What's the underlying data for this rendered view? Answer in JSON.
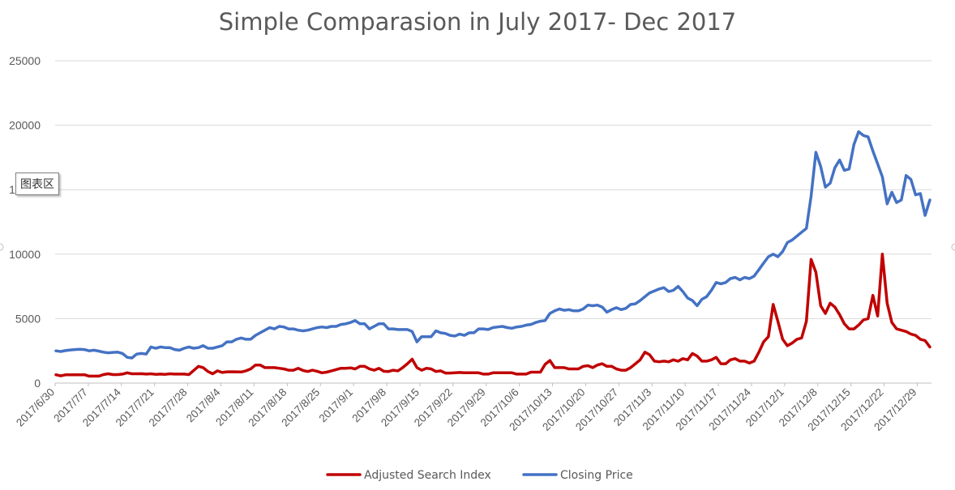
{
  "chart_data": {
    "type": "line",
    "title": "Simple Comparasion in July 2017- Dec 2017",
    "ylim": [
      0,
      25000
    ],
    "yticks": [
      "0",
      "5000",
      "10000",
      "15000",
      "20000",
      "25000"
    ],
    "xticks": [
      "2017/6/30",
      "2017/7/7",
      "2017/7/14",
      "2017/7/21",
      "2017/7/28",
      "2017/8/4",
      "2017/8/11",
      "2017/8/18",
      "2017/8/25",
      "2017/9/1",
      "2017/9/8",
      "2017/9/15",
      "2017/9/22",
      "2017/9/29",
      "2017/10/6",
      "2017/10/13",
      "2017/10/20",
      "2017/10/27",
      "2017/11/3",
      "2017/11/10",
      "2017/11/17",
      "2017/11/24",
      "2017/12/1",
      "2017/12/8",
      "2017/12/15",
      "2017/12/22",
      "2017/12/29"
    ],
    "x_start": "2017/6/30",
    "x_end": "2018/1/1",
    "grid": true,
    "legend_position": "bottom",
    "series": [
      {
        "name": "Adjusted Search Index",
        "color": "#C00000",
        "values": [
          650,
          560,
          640,
          640,
          640,
          640,
          650,
          540,
          540,
          540,
          660,
          720,
          660,
          660,
          700,
          800,
          720,
          720,
          730,
          700,
          720,
          680,
          700,
          680,
          720,
          700,
          700,
          700,
          660,
          980,
          1300,
          1200,
          900,
          720,
          950,
          820,
          870,
          880,
          870,
          860,
          950,
          1100,
          1400,
          1400,
          1200,
          1200,
          1200,
          1150,
          1100,
          1000,
          1000,
          1150,
          980,
          900,
          1000,
          920,
          800,
          850,
          950,
          1050,
          1150,
          1150,
          1180,
          1100,
          1300,
          1300,
          1100,
          1000,
          1150,
          920,
          900,
          1000,
          950,
          1200,
          1500,
          1850,
          1200,
          1000,
          1150,
          1100,
          900,
          950,
          780,
          780,
          800,
          820,
          800,
          800,
          800,
          800,
          700,
          700,
          800,
          800,
          800,
          800,
          800,
          700,
          700,
          700,
          850,
          850,
          850,
          1450,
          1750,
          1200,
          1200,
          1200,
          1100,
          1100,
          1100,
          1300,
          1350,
          1200,
          1400,
          1500,
          1300,
          1300,
          1100,
          1000,
          1000,
          1200,
          1500,
          1800,
          2400,
          2200,
          1700,
          1650,
          1700,
          1650,
          1800,
          1700,
          1900,
          1800,
          2300,
          2100,
          1700,
          1700,
          1800,
          2000,
          1500,
          1500,
          1800,
          1900,
          1700,
          1700,
          1550,
          1700,
          2400,
          3200,
          3600,
          6100,
          4800,
          3400,
          2900,
          3100,
          3400,
          3500,
          4800,
          9600,
          8600,
          6000,
          5400,
          6200,
          5900,
          5300,
          4600,
          4200,
          4200,
          4500,
          4900,
          5000,
          6800,
          5200,
          10000,
          6200,
          4700,
          4200,
          4100,
          4000,
          3800,
          3700,
          3400,
          3300,
          2800
        ]
      },
      {
        "name": "Closing Price",
        "color": "#4472C4",
        "values": [
          2500,
          2450,
          2520,
          2570,
          2600,
          2620,
          2600,
          2500,
          2550,
          2480,
          2400,
          2350,
          2380,
          2400,
          2300,
          2000,
          1950,
          2250,
          2300,
          2250,
          2800,
          2700,
          2800,
          2750,
          2750,
          2600,
          2550,
          2700,
          2800,
          2700,
          2750,
          2900,
          2700,
          2700,
          2800,
          2900,
          3200,
          3200,
          3400,
          3500,
          3400,
          3400,
          3700,
          3900,
          4100,
          4300,
          4200,
          4400,
          4350,
          4200,
          4200,
          4100,
          4050,
          4100,
          4200,
          4300,
          4350,
          4300,
          4400,
          4400,
          4550,
          4600,
          4700,
          4850,
          4600,
          4600,
          4200,
          4400,
          4600,
          4600,
          4200,
          4200,
          4150,
          4150,
          4150,
          4000,
          3200,
          3600,
          3600,
          3600,
          4050,
          3900,
          3850,
          3700,
          3650,
          3800,
          3700,
          3900,
          3900,
          4200,
          4200,
          4150,
          4300,
          4350,
          4400,
          4300,
          4250,
          4350,
          4400,
          4500,
          4550,
          4700,
          4800,
          4850,
          5400,
          5600,
          5750,
          5650,
          5700,
          5600,
          5600,
          5750,
          6050,
          6000,
          6050,
          5900,
          5500,
          5700,
          5850,
          5700,
          5800,
          6100,
          6150,
          6400,
          6700,
          7000,
          7150,
          7300,
          7400,
          7100,
          7200,
          7500,
          7100,
          6600,
          6400,
          6000,
          6500,
          6700,
          7200,
          7800,
          7700,
          7800,
          8100,
          8200,
          8000,
          8200,
          8100,
          8300,
          8800,
          9300,
          9800,
          10000,
          9800,
          10200,
          10900,
          11100,
          11400,
          11700,
          12000,
          14500,
          17900,
          16800,
          15200,
          15500,
          16700,
          17300,
          16500,
          16600,
          18500,
          19500,
          19200,
          19100,
          18000,
          17000,
          16000,
          13900,
          14800,
          14000,
          14200,
          16100,
          15800,
          14600,
          14700,
          13000,
          14200
        ]
      }
    ]
  },
  "overlay": {
    "tooltip": "图表区"
  }
}
